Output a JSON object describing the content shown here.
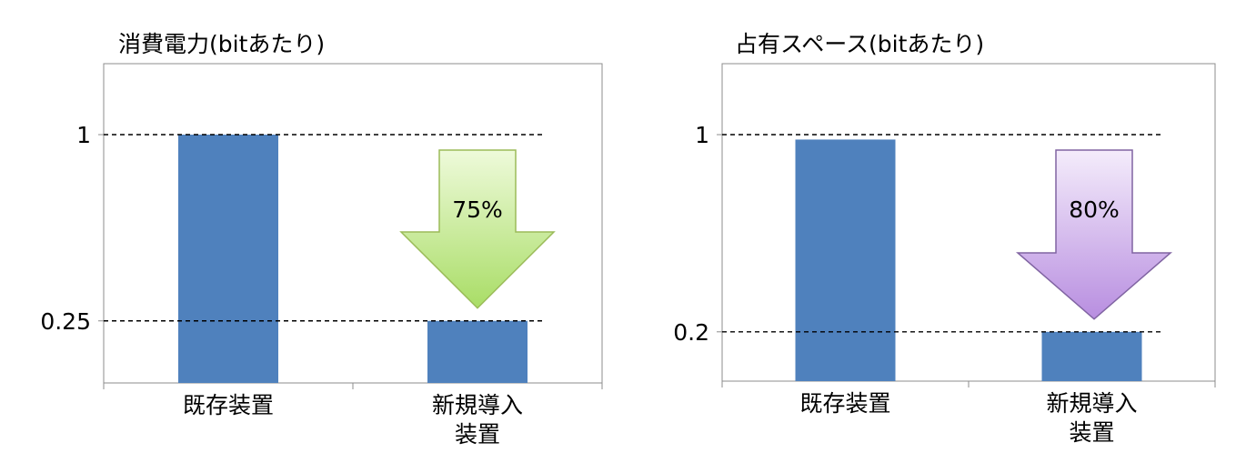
{
  "chart_data": [
    {
      "type": "bar",
      "title": "消費電力(bitあたり)",
      "categories": [
        "既存装置",
        "新規導入\n装置"
      ],
      "values": [
        1,
        0.25
      ],
      "yticks": [
        {
          "value": 1,
          "label": "1"
        },
        {
          "value": 0.25,
          "label": "0.25"
        }
      ],
      "ylim": [
        0,
        1.27
      ],
      "reduction_label": "75%",
      "bar_color": "#4f81bd",
      "arrow_color": "#b8e57e",
      "arrow_stroke": "#9bbb59",
      "grid": false
    },
    {
      "type": "bar",
      "title": "占有スペース(bitあたり)",
      "categories": [
        "既存装置",
        "新規導入\n装置"
      ],
      "values": [
        0.98,
        0.2
      ],
      "yticks": [
        {
          "value": 1,
          "label": "1"
        },
        {
          "value": 0.2,
          "label": "0.2"
        }
      ],
      "ylim": [
        0,
        1.27
      ],
      "reduction_label": "80%",
      "bar_color": "#4f81bd",
      "arrow_color": "#c8a6e6",
      "arrow_stroke": "#8064a2",
      "grid": false
    }
  ]
}
